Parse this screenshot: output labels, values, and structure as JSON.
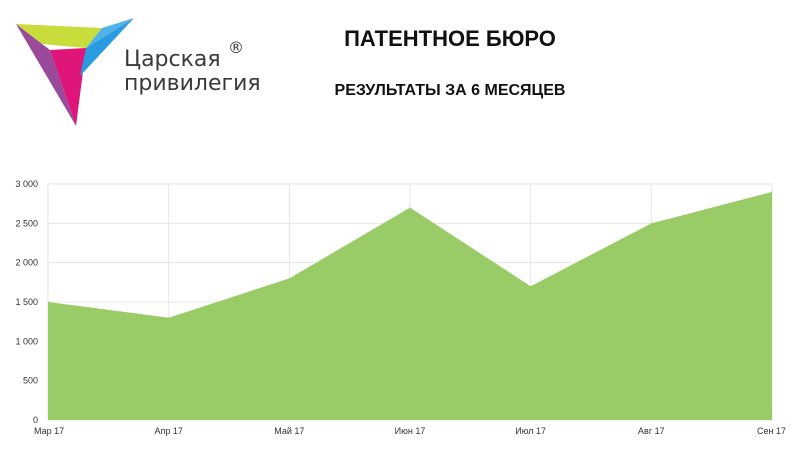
{
  "logo": {
    "line1": "Царская",
    "line2": "привилегия",
    "reg": "®"
  },
  "header": {
    "title": "ПАТЕНТНОЕ БЮРО",
    "subtitle": "РЕЗУЛЬТАТЫ ЗА 6 МЕСЯЦЕВ"
  },
  "colors": {
    "area_fill": "#99cc66",
    "grid": "#e6e6e6"
  },
  "chart_data": {
    "type": "area",
    "categories": [
      "Мар 17",
      "Апр 17",
      "Май 17",
      "Июн 17",
      "Июл 17",
      "Авг 17",
      "Сен 17"
    ],
    "series": [
      {
        "values": [
          1500,
          1300,
          1800,
          2700,
          1700,
          2500,
          2900
        ]
      }
    ],
    "ylim": [
      0,
      3000
    ],
    "yticks": [
      0,
      500,
      1000,
      1500,
      2000,
      2500,
      3000
    ],
    "ytick_labels": [
      "0",
      "500",
      "1 000",
      "1 500",
      "2 000",
      "2 500",
      "3 000"
    ],
    "grid": true,
    "title": "",
    "xlabel": "",
    "ylabel": ""
  }
}
